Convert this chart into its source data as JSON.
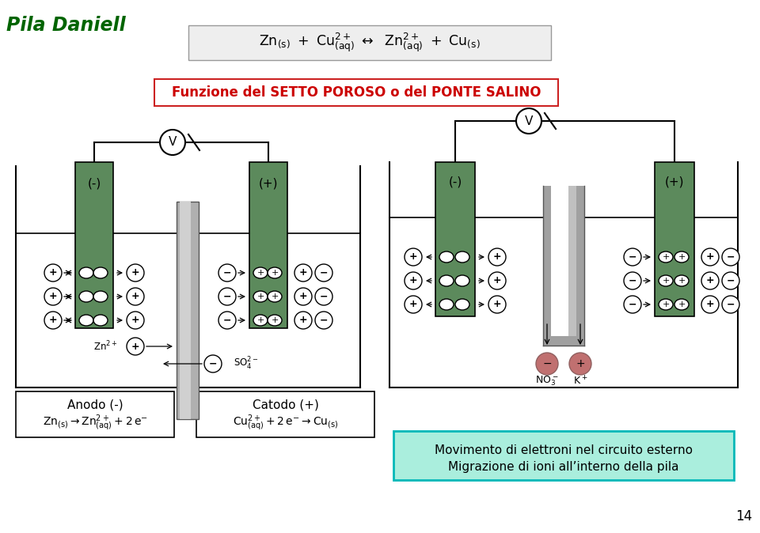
{
  "title": "Pila Daniell",
  "title_color": "#006400",
  "bg_color": "#ffffff",
  "funzione_text": "Funzione del SETTO POROSO o del PONTE SALINO",
  "anodo_label": "Anodo (-)",
  "catodo_label": "Catodo (+)",
  "movimento_line1": "Movimento di elettroni nel circuito esterno",
  "movimento_line2": "Migrazione di ioni all’interno della pila",
  "green_color": "#5c8a5c",
  "gray_light": "#c0c0c0",
  "gray_mid": "#a0a0a0",
  "gray_dark": "#808080",
  "light_cyan": "#aaeedd",
  "pink_ion": "#c07070",
  "pink_ion_edge": "#906060",
  "page_number": "14",
  "lw_cell": 1.5,
  "lw_wire": 1.5
}
